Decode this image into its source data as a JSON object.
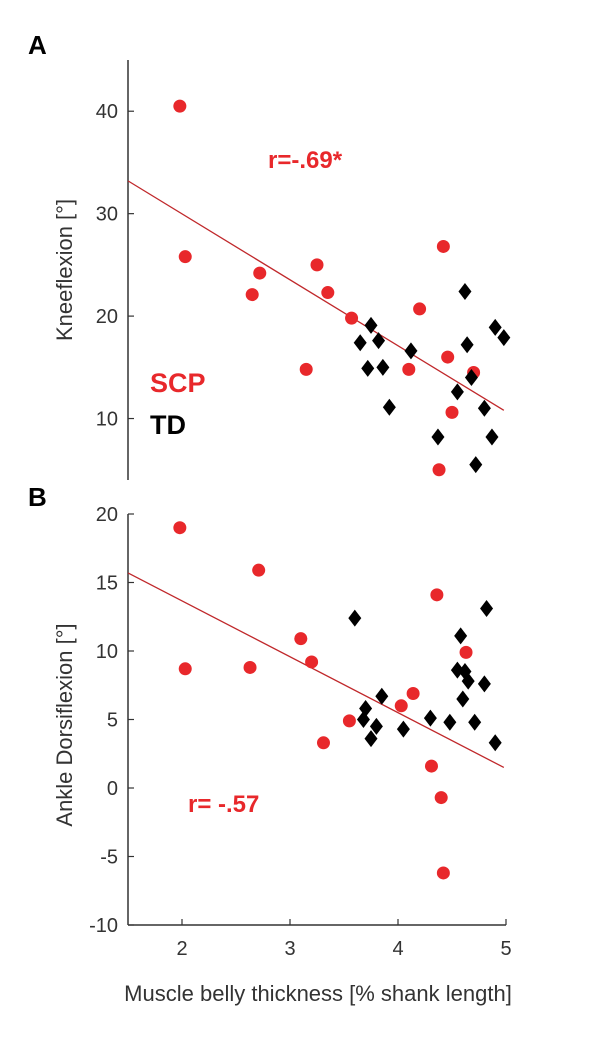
{
  "colors": {
    "scp": "#e8282b",
    "td": "#000000",
    "fit": "#c0282b",
    "axis": "#333333"
  },
  "shared_xlabel": "Muscle belly thickness [% shank length]",
  "chart_data": [
    {
      "type": "scatter",
      "panel_label": "A",
      "title": "",
      "xlabel": "",
      "ylabel": "Kneeflexion [°]",
      "xlim": [
        1.5,
        5
      ],
      "ylim": [
        4,
        45
      ],
      "xticks": [
        2,
        3,
        4,
        5
      ],
      "yticks": [
        10,
        20,
        30,
        40
      ],
      "grid": false,
      "annotation": "r=-.69*",
      "legend": {
        "placement": "bottom-left",
        "entries": [
          "SCP",
          "TD"
        ]
      },
      "series": [
        {
          "name": "SCP",
          "marker": "circle",
          "points": [
            [
              1.98,
              40.5
            ],
            [
              2.03,
              25.8
            ],
            [
              2.65,
              22.1
            ],
            [
              2.72,
              24.2
            ],
            [
              3.15,
              14.8
            ],
            [
              3.25,
              25.0
            ],
            [
              3.35,
              22.3
            ],
            [
              3.57,
              19.8
            ],
            [
              4.1,
              14.8
            ],
            [
              4.2,
              20.7
            ],
            [
              4.38,
              5.0
            ],
            [
              4.42,
              26.8
            ],
            [
              4.46,
              16.0
            ],
            [
              4.5,
              10.6
            ],
            [
              4.7,
              14.5
            ]
          ]
        },
        {
          "name": "TD",
          "marker": "diamond",
          "points": [
            [
              3.65,
              17.4
            ],
            [
              3.72,
              14.9
            ],
            [
              3.75,
              19.1
            ],
            [
              3.82,
              17.6
            ],
            [
              3.86,
              15.0
            ],
            [
              3.92,
              11.1
            ],
            [
              4.12,
              16.6
            ],
            [
              4.37,
              8.2
            ],
            [
              4.55,
              12.6
            ],
            [
              4.62,
              22.4
            ],
            [
              4.64,
              17.2
            ],
            [
              4.68,
              14.0
            ],
            [
              4.72,
              5.5
            ],
            [
              4.8,
              11.0
            ],
            [
              4.87,
              8.2
            ],
            [
              4.9,
              18.9
            ],
            [
              4.98,
              17.9
            ]
          ]
        }
      ],
      "fit_line": {
        "x": [
          1.5,
          4.98
        ],
        "y": [
          33.2,
          10.8
        ]
      }
    },
    {
      "type": "scatter",
      "panel_label": "B",
      "title": "",
      "xlabel": "Muscle belly thickness [% shank length]",
      "ylabel": "Ankle Dorsiflexion [°]",
      "xlim": [
        1.5,
        5
      ],
      "ylim": [
        -10,
        20
      ],
      "xticks": [
        2,
        3,
        4,
        5
      ],
      "yticks": [
        -10,
        -5,
        0,
        5,
        10,
        15,
        20
      ],
      "grid": false,
      "annotation": "r= -.57",
      "series": [
        {
          "name": "SCP",
          "marker": "circle",
          "points": [
            [
              1.98,
              19.0
            ],
            [
              2.03,
              8.7
            ],
            [
              2.63,
              8.8
            ],
            [
              2.71,
              15.9
            ],
            [
              3.1,
              10.9
            ],
            [
              3.2,
              9.2
            ],
            [
              3.31,
              3.3
            ],
            [
              3.55,
              4.9
            ],
            [
              4.03,
              6.0
            ],
            [
              4.14,
              6.9
            ],
            [
              4.31,
              1.6
            ],
            [
              4.36,
              14.1
            ],
            [
              4.4,
              -0.7
            ],
            [
              4.42,
              -6.2
            ],
            [
              4.63,
              9.9
            ]
          ]
        },
        {
          "name": "TD",
          "marker": "diamond",
          "points": [
            [
              3.6,
              12.4
            ],
            [
              3.68,
              5.0
            ],
            [
              3.7,
              5.8
            ],
            [
              3.75,
              3.6
            ],
            [
              3.8,
              4.5
            ],
            [
              3.85,
              6.7
            ],
            [
              4.05,
              4.3
            ],
            [
              4.3,
              5.1
            ],
            [
              4.48,
              4.8
            ],
            [
              4.55,
              8.6
            ],
            [
              4.58,
              11.1
            ],
            [
              4.6,
              6.5
            ],
            [
              4.62,
              8.5
            ],
            [
              4.65,
              7.8
            ],
            [
              4.71,
              4.8
            ],
            [
              4.8,
              7.6
            ],
            [
              4.82,
              13.1
            ],
            [
              4.9,
              3.3
            ]
          ]
        }
      ],
      "fit_line": {
        "x": [
          1.5,
          4.98
        ],
        "y": [
          15.7,
          1.5
        ]
      }
    }
  ]
}
